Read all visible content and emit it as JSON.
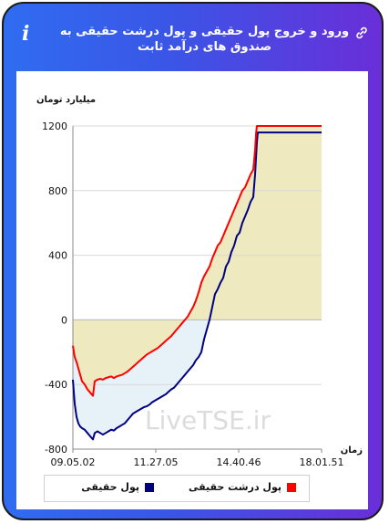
{
  "header": {
    "title": "ورود و خروج پول حقیقی و پول درشت حقیقی به صندوق های درآمد ثابت",
    "info_glyph": "i",
    "link_icon": "link-icon"
  },
  "colors": {
    "frame_gradient_start": "#2f6cf0",
    "frame_gradient_end": "#6a2ed8",
    "real_money_line": "#000080",
    "big_real_money_line": "#ff0000",
    "positive_fill": "#efe9bf",
    "negative_fill_upper": "#f6f0cc",
    "negative_fill_lower": "#e6f2f8"
  },
  "chart_data": {
    "type": "line",
    "ylabel": "میلیارد تومان",
    "xlabel": "زمان",
    "ylim": [
      -800,
      1200
    ],
    "yticks": [
      -800,
      -400,
      0,
      400,
      800,
      1200
    ],
    "xtick_labels": [
      "09.05.02",
      "11.27.05",
      "14.40.46",
      "18.01.51"
    ],
    "grid": true,
    "legend_position": "bottom",
    "watermark": "LiveTSE.ir",
    "series": [
      {
        "name": "پول حقیقی",
        "color": "#000080",
        "points": [
          [
            0,
            -370
          ],
          [
            2,
            -520
          ],
          [
            4,
            -600
          ],
          [
            6,
            -640
          ],
          [
            8,
            -660
          ],
          [
            10,
            -670
          ],
          [
            13,
            -680
          ],
          [
            16,
            -700
          ],
          [
            19,
            -720
          ],
          [
            22,
            -740
          ],
          [
            24,
            -700
          ],
          [
            27,
            -690
          ],
          [
            30,
            -700
          ],
          [
            33,
            -710
          ],
          [
            36,
            -700
          ],
          [
            39,
            -690
          ],
          [
            42,
            -680
          ],
          [
            45,
            -685
          ],
          [
            48,
            -670
          ],
          [
            51,
            -660
          ],
          [
            54,
            -650
          ],
          [
            57,
            -640
          ],
          [
            60,
            -620
          ],
          [
            63,
            -600
          ],
          [
            66,
            -580
          ],
          [
            69,
            -570
          ],
          [
            72,
            -560
          ],
          [
            75,
            -550
          ],
          [
            78,
            -540
          ],
          [
            81,
            -535
          ],
          [
            84,
            -525
          ],
          [
            87,
            -510
          ],
          [
            90,
            -500
          ],
          [
            93,
            -490
          ],
          [
            96,
            -480
          ],
          [
            99,
            -470
          ],
          [
            102,
            -460
          ],
          [
            105,
            -445
          ],
          [
            108,
            -430
          ],
          [
            111,
            -420
          ],
          [
            114,
            -400
          ],
          [
            117,
            -380
          ],
          [
            120,
            -360
          ],
          [
            123,
            -340
          ],
          [
            126,
            -320
          ],
          [
            129,
            -300
          ],
          [
            132,
            -280
          ],
          [
            135,
            -250
          ],
          [
            138,
            -230
          ],
          [
            141,
            -200
          ],
          [
            144,
            -120
          ],
          [
            147,
            -60
          ],
          [
            150,
            0
          ],
          [
            153,
            80
          ],
          [
            156,
            160
          ],
          [
            159,
            190
          ],
          [
            162,
            230
          ],
          [
            165,
            260
          ],
          [
            168,
            330
          ],
          [
            171,
            360
          ],
          [
            174,
            420
          ],
          [
            177,
            460
          ],
          [
            180,
            520
          ],
          [
            183,
            540
          ],
          [
            186,
            600
          ],
          [
            189,
            640
          ],
          [
            192,
            680
          ],
          [
            195,
            730
          ],
          [
            198,
            760
          ],
          [
            200,
            900
          ],
          [
            201,
            1000
          ],
          [
            202,
            1100
          ],
          [
            203,
            1160
          ],
          [
            230,
            1160
          ],
          [
            260,
            1160
          ],
          [
            273,
            1160
          ]
        ]
      },
      {
        "name": "پول درشت حقیقی",
        "color": "#ff0000",
        "points": [
          [
            0,
            -160
          ],
          [
            2,
            -230
          ],
          [
            4,
            -260
          ],
          [
            6,
            -300
          ],
          [
            8,
            -340
          ],
          [
            10,
            -380
          ],
          [
            13,
            -400
          ],
          [
            16,
            -430
          ],
          [
            19,
            -450
          ],
          [
            22,
            -470
          ],
          [
            24,
            -380
          ],
          [
            27,
            -370
          ],
          [
            30,
            -365
          ],
          [
            33,
            -370
          ],
          [
            36,
            -360
          ],
          [
            39,
            -355
          ],
          [
            42,
            -350
          ],
          [
            45,
            -360
          ],
          [
            48,
            -350
          ],
          [
            51,
            -345
          ],
          [
            54,
            -340
          ],
          [
            57,
            -330
          ],
          [
            60,
            -320
          ],
          [
            63,
            -305
          ],
          [
            66,
            -290
          ],
          [
            69,
            -275
          ],
          [
            72,
            -260
          ],
          [
            75,
            -245
          ],
          [
            78,
            -230
          ],
          [
            81,
            -215
          ],
          [
            84,
            -205
          ],
          [
            87,
            -195
          ],
          [
            90,
            -185
          ],
          [
            93,
            -175
          ],
          [
            96,
            -160
          ],
          [
            99,
            -145
          ],
          [
            102,
            -130
          ],
          [
            105,
            -115
          ],
          [
            108,
            -100
          ],
          [
            111,
            -80
          ],
          [
            114,
            -60
          ],
          [
            117,
            -40
          ],
          [
            120,
            -20
          ],
          [
            123,
            0
          ],
          [
            126,
            20
          ],
          [
            129,
            50
          ],
          [
            132,
            80
          ],
          [
            135,
            120
          ],
          [
            138,
            170
          ],
          [
            141,
            230
          ],
          [
            144,
            270
          ],
          [
            147,
            300
          ],
          [
            150,
            330
          ],
          [
            153,
            380
          ],
          [
            156,
            420
          ],
          [
            159,
            460
          ],
          [
            162,
            480
          ],
          [
            165,
            520
          ],
          [
            168,
            560
          ],
          [
            171,
            600
          ],
          [
            174,
            640
          ],
          [
            177,
            680
          ],
          [
            180,
            720
          ],
          [
            183,
            760
          ],
          [
            186,
            800
          ],
          [
            189,
            820
          ],
          [
            192,
            860
          ],
          [
            195,
            900
          ],
          [
            198,
            930
          ],
          [
            200,
            1050
          ],
          [
            201,
            1150
          ],
          [
            202,
            1200
          ],
          [
            230,
            1200
          ],
          [
            260,
            1200
          ],
          [
            273,
            1200
          ]
        ]
      }
    ],
    "x_domain": [
      0,
      273
    ]
  },
  "legend": {
    "item1_label": "پول حقیقی",
    "item2_label": "پول درشت حقیقی"
  }
}
